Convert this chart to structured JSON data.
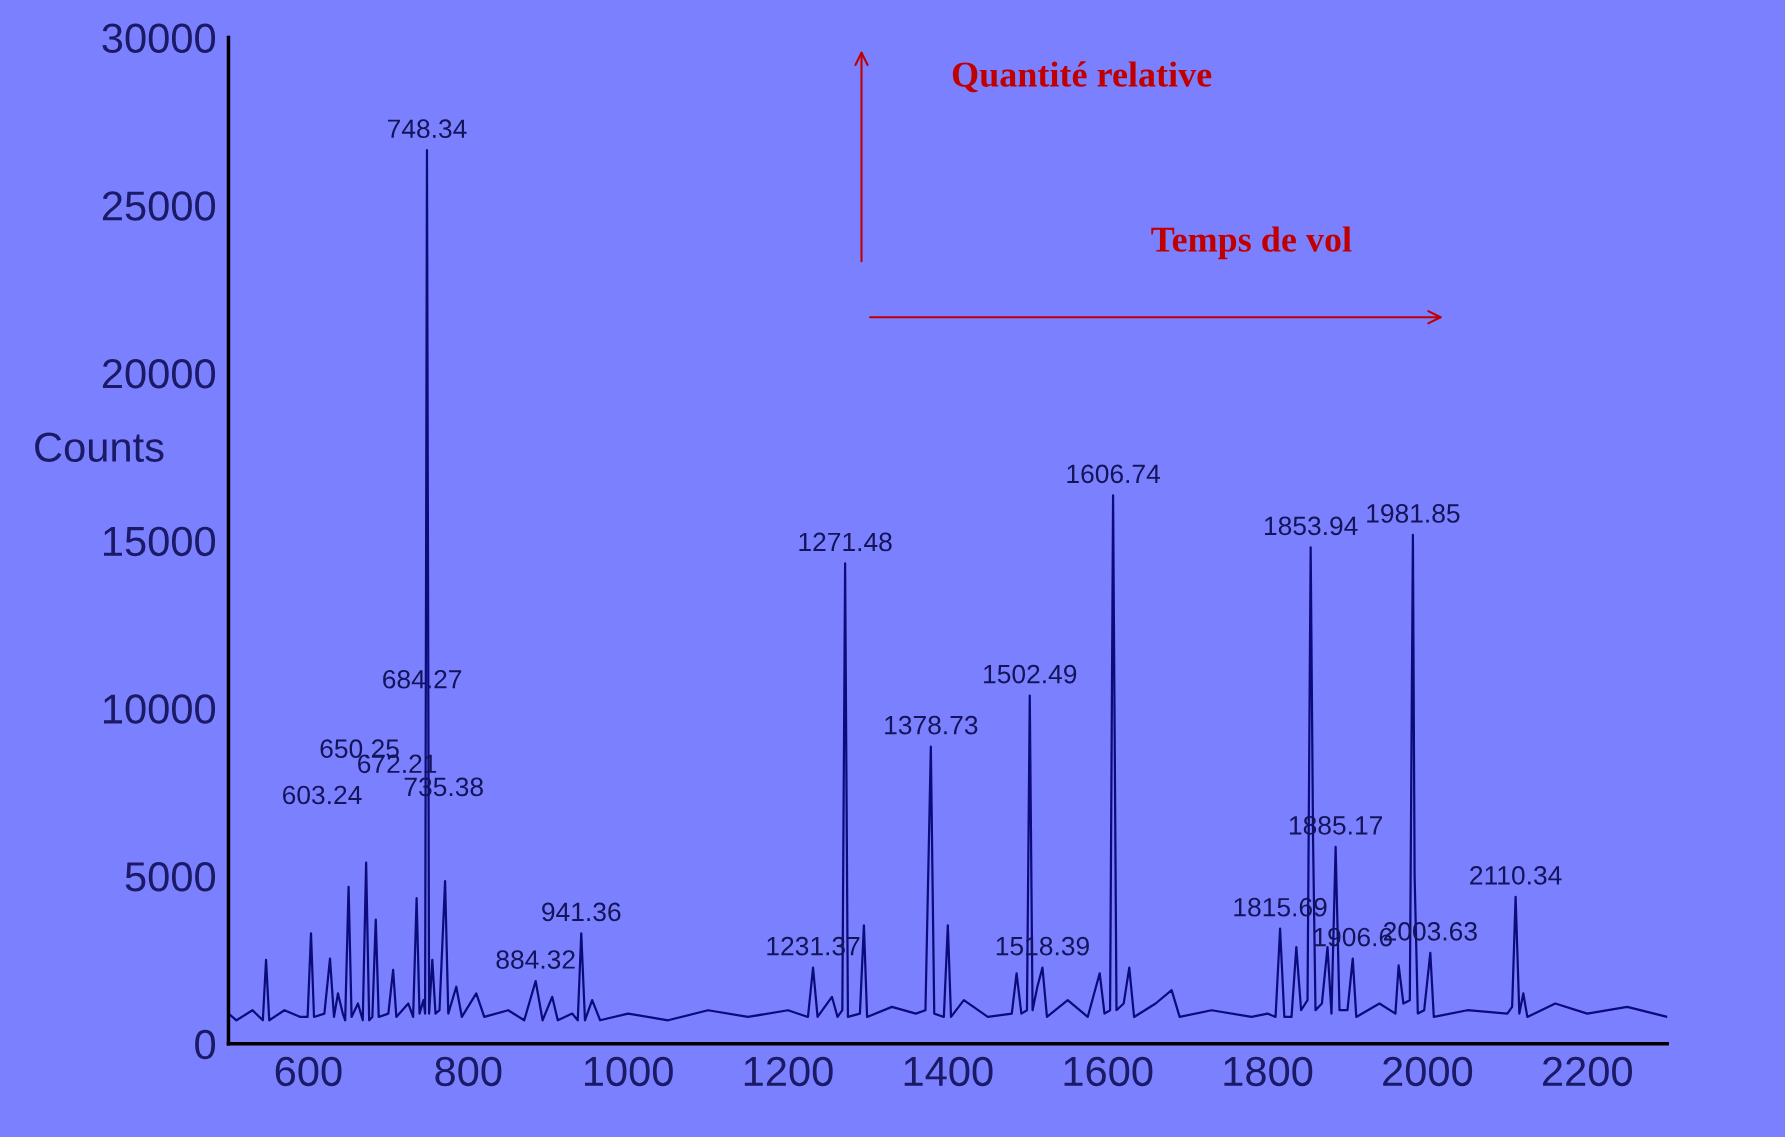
{
  "chart_data": {
    "type": "line",
    "ylabel": "Counts",
    "xlim": [
      500,
      2300
    ],
    "xticks": [
      600,
      800,
      1000,
      1200,
      1400,
      1600,
      1800,
      2000,
      2200
    ],
    "ylim": [
      0,
      30000
    ],
    "yticks": [
      0,
      5000,
      10000,
      15000,
      20000,
      25000,
      30000
    ],
    "grid": false,
    "legend": false,
    "marker": "none",
    "line_style": "solid",
    "series": [
      {
        "color": "#0b0b7a",
        "x": [
          500,
          510,
          530,
          543,
          547,
          551,
          570,
          590,
          599,
          603.24,
          607,
          620,
          627,
          632,
          637,
          643,
          646,
          650.25,
          654,
          662,
          668,
          672.21,
          676,
          680,
          684.27,
          688,
          700,
          706,
          710,
          725,
          731,
          735.38,
          739,
          744,
          746,
          748.34,
          751,
          755,
          759,
          764,
          771,
          775,
          785,
          792,
          810,
          820,
          850,
          870,
          884.32,
          893,
          905,
          912,
          930,
          937,
          941.36,
          946,
          955,
          965,
          1000,
          1050,
          1100,
          1150,
          1200,
          1225,
          1231.37,
          1237,
          1255,
          1262,
          1268,
          1271.48,
          1275,
          1290,
          1295,
          1299,
          1330,
          1360,
          1372,
          1378.73,
          1383,
          1395,
          1400,
          1404,
          1420,
          1450,
          1480,
          1486,
          1492,
          1499,
          1502.49,
          1506,
          1512,
          1518.39,
          1524,
          1550,
          1575,
          1590,
          1596,
          1603,
          1606.74,
          1611,
          1620,
          1627,
          1633,
          1660,
          1680,
          1690,
          1730,
          1780,
          1800,
          1810,
          1815.69,
          1821,
          1830,
          1836,
          1842,
          1850,
          1853.94,
          1857,
          1860,
          1868,
          1875,
          1880,
          1885.17,
          1890,
          1900,
          1906.6,
          1911,
          1940,
          1960,
          1964,
          1970,
          1978,
          1981.85,
          1984,
          1988,
          1996,
          2003.63,
          2008,
          2050,
          2100,
          2106,
          2110.34,
          2115,
          2120,
          2125,
          2160,
          2200,
          2250,
          2300
        ],
        "values": [
          900,
          700,
          1000,
          700,
          2500,
          700,
          1000,
          800,
          800,
          3290,
          800,
          900,
          2540,
          800,
          1500,
          900,
          700,
          4680,
          800,
          1200,
          700,
          5400,
          700,
          800,
          3700,
          800,
          900,
          2200,
          800,
          1200,
          800,
          4340,
          900,
          1300,
          900,
          26640,
          900,
          2500,
          900,
          1000,
          4850,
          900,
          1700,
          800,
          1500,
          800,
          1000,
          700,
          1870,
          700,
          1400,
          700,
          900,
          700,
          3290,
          700,
          1300,
          700,
          900,
          700,
          1000,
          800,
          1000,
          800,
          2270,
          800,
          1400,
          800,
          1000,
          14320,
          800,
          900,
          3530,
          800,
          1100,
          900,
          1000,
          8860,
          900,
          800,
          3530,
          800,
          1300,
          800,
          900,
          2100,
          900,
          1000,
          10380,
          1000,
          1700,
          2270,
          800,
          1300,
          800,
          2100,
          900,
          1000,
          16350,
          1000,
          1200,
          2270,
          800,
          1200,
          1600,
          800,
          1000,
          800,
          900,
          800,
          3430,
          800,
          800,
          2880,
          1000,
          1300,
          14800,
          6000,
          1000,
          1200,
          2880,
          900,
          5870,
          1000,
          1000,
          2540,
          800,
          1200,
          900,
          2340,
          1200,
          1300,
          15170,
          5000,
          900,
          1000,
          2710,
          800,
          1000,
          900,
          1100,
          4380,
          900,
          1500,
          800,
          1200,
          900,
          1100,
          800
        ]
      }
    ],
    "annotations": [
      {
        "text": "748.34",
        "x": 748.34,
        "y": 26640
      },
      {
        "text": "884.32",
        "x": 884.32,
        "y": 1870
      },
      {
        "text": "941.36",
        "x": 941.36,
        "y": 3290
      },
      {
        "text": "1231.37",
        "x": 1231.37,
        "y": 2270
      },
      {
        "text": "1271.48",
        "x": 1271.48,
        "y": 14320
      },
      {
        "text": "1378.73",
        "x": 1378.73,
        "y": 8860
      },
      {
        "text": "1502.49",
        "x": 1502.49,
        "y": 10380
      },
      {
        "text": "1518.39",
        "x": 1518.39,
        "y": 2270
      },
      {
        "text": "1606.74",
        "x": 1606.74,
        "y": 16350
      },
      {
        "text": "1815.69",
        "x": 1815.69,
        "y": 3430
      },
      {
        "text": "1853.94",
        "x": 1853.94,
        "y": 14800
      },
      {
        "text": "1885.17",
        "x": 1885.17,
        "y": 5870
      },
      {
        "text": "1906.6",
        "x": 1906.6,
        "y": 2540
      },
      {
        "text": "1981.85",
        "x": 1981.85,
        "y": 15170
      },
      {
        "text": "2003.63",
        "x": 2003.63,
        "y": 2710
      },
      {
        "text": "2110.34",
        "x": 2110.34,
        "y": 4380
      },
      "603.24",
      "650.25",
      "672.21",
      "684.27",
      "735.38",
      "Quantité relative",
      "Temps de vol"
    ]
  }
}
